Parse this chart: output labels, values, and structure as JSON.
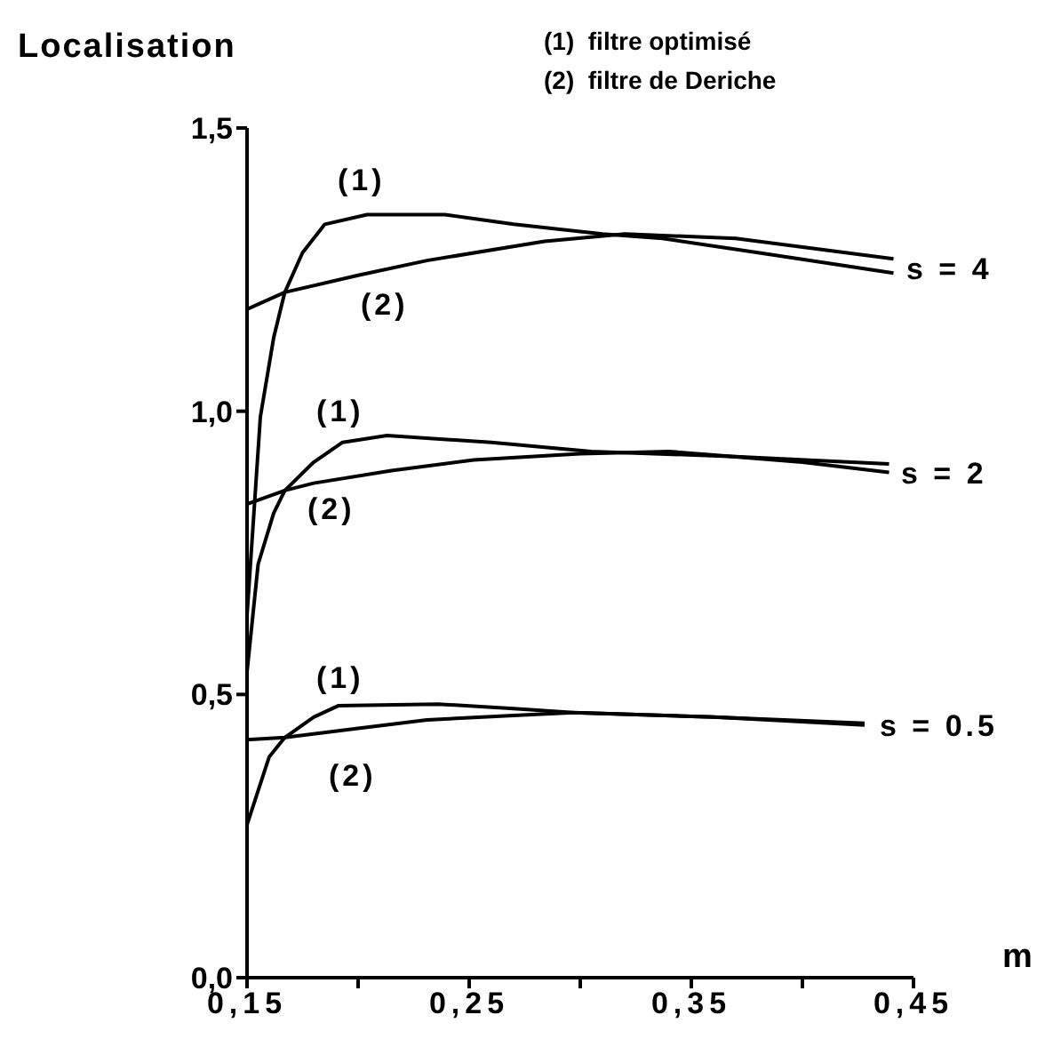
{
  "chart_data": {
    "type": "line",
    "ylabel": "Localisation",
    "xlabel": "m",
    "xlim": [
      0.15,
      0.45
    ],
    "ylim": [
      0,
      1.5
    ],
    "xticks": [
      {
        "value": 0.15,
        "label": "0,15"
      },
      {
        "value": 0.2,
        "label": null
      },
      {
        "value": 0.25,
        "label": "0,25"
      },
      {
        "value": 0.3,
        "label": null
      },
      {
        "value": 0.35,
        "label": "0,35"
      },
      {
        "value": 0.4,
        "label": null
      },
      {
        "value": 0.45,
        "label": "0,45"
      }
    ],
    "yticks": [
      {
        "value": 0,
        "label": "0,0"
      },
      {
        "value": 0.5,
        "label": "0,5"
      },
      {
        "value": 1,
        "label": "1,0"
      },
      {
        "value": 1.5,
        "label": "1,5"
      }
    ],
    "grid": false,
    "marker": "none",
    "line_style": "solid",
    "series": [
      {
        "color": "#000000",
        "x": [
          0.15,
          0.156,
          0.162,
          0.167,
          0.175,
          0.185,
          0.204,
          0.239,
          0.27,
          0.31,
          0.337,
          0.38,
          0.441
        ],
        "values": [
          0.64,
          0.99,
          1.13,
          1.21,
          1.28,
          1.33,
          1.347,
          1.347,
          1.33,
          1.313,
          1.305,
          1.28,
          1.244
        ]
      },
      {
        "color": "#000000",
        "x": [
          0.15,
          0.167,
          0.2,
          0.231,
          0.284,
          0.32,
          0.37,
          0.441
        ],
        "values": [
          1.18,
          1.21,
          1.24,
          1.266,
          1.3,
          1.313,
          1.305,
          1.269
        ]
      },
      {
        "color": "#000000",
        "x": [
          0.15,
          0.155,
          0.162,
          0.167,
          0.18,
          0.193,
          0.213,
          0.26,
          0.305,
          0.37,
          0.439
        ],
        "values": [
          0.54,
          0.73,
          0.82,
          0.86,
          0.91,
          0.945,
          0.957,
          0.945,
          0.929,
          0.92,
          0.907
        ]
      },
      {
        "color": "#000000",
        "x": [
          0.15,
          0.167,
          0.18,
          0.215,
          0.252,
          0.3,
          0.34,
          0.4,
          0.439
        ],
        "values": [
          0.836,
          0.86,
          0.873,
          0.895,
          0.914,
          0.925,
          0.929,
          0.91,
          0.892
        ]
      },
      {
        "color": "#000000",
        "x": [
          0.15,
          0.155,
          0.16,
          0.167,
          0.18,
          0.191,
          0.236,
          0.27,
          0.297,
          0.36,
          0.428
        ],
        "values": [
          0.27,
          0.33,
          0.39,
          0.424,
          0.46,
          0.48,
          0.483,
          0.475,
          0.468,
          0.46,
          0.449
        ]
      },
      {
        "color": "#000000",
        "x": [
          0.15,
          0.167,
          0.2,
          0.231,
          0.27,
          0.297,
          0.36,
          0.428
        ],
        "values": [
          0.42,
          0.424,
          0.44,
          0.455,
          0.463,
          0.468,
          0.46,
          0.446
        ]
      }
    ],
    "annotations": [
      "(1)  filtre optimisé",
      "(2)  filtre de Deriche",
      "(1)",
      "(2)",
      "(1)",
      "(2)",
      "(1)",
      "(2)",
      "s = 4",
      "s = 2",
      "s = 0.5"
    ]
  }
}
